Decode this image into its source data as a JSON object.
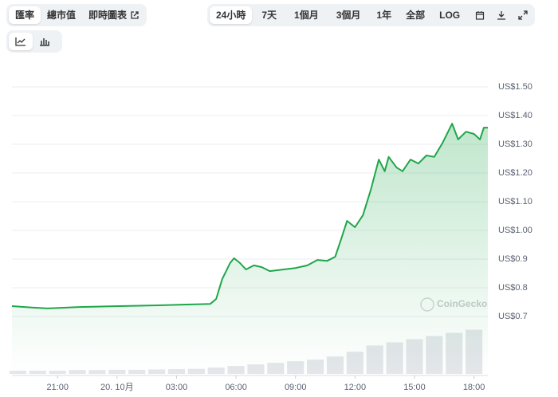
{
  "toolbar": {
    "left": [
      "匯率",
      "總市值",
      "即時圖表"
    ],
    "right": [
      "24小時",
      "7天",
      "1個月",
      "3個月",
      "1年",
      "全部",
      "LOG"
    ]
  },
  "watermark": "CoinGecko",
  "chart_data": {
    "type": "line",
    "color": "#1fa64a",
    "volume_color": "#e3e6ea",
    "grid": true,
    "x": [
      -5.3,
      -4.3,
      -3.5,
      -1.9,
      0.1,
      2.1,
      3.7,
      4.7,
      5.0,
      5.3,
      5.5,
      5.7,
      5.9,
      6.2,
      6.5,
      6.9,
      7.3,
      7.7,
      8.4,
      9.0,
      9.6,
      10.1,
      10.6,
      11.0,
      11.3,
      11.6,
      12.0,
      12.4,
      12.8,
      13.2,
      13.5,
      13.7,
      14.1,
      14.4,
      14.8,
      15.2,
      15.6,
      16.0,
      16.4,
      16.9,
      17.2,
      17.6,
      18.0,
      18.3,
      18.5,
      18.7
    ],
    "values": [
      0.736,
      0.731,
      0.728,
      0.733,
      0.736,
      0.739,
      0.742,
      0.744,
      0.761,
      0.83,
      0.858,
      0.886,
      0.903,
      0.886,
      0.864,
      0.878,
      0.872,
      0.858,
      0.864,
      0.869,
      0.878,
      0.897,
      0.894,
      0.908,
      0.969,
      1.033,
      1.011,
      1.053,
      1.142,
      1.247,
      1.206,
      1.256,
      1.219,
      1.206,
      1.247,
      1.233,
      1.261,
      1.256,
      1.303,
      1.372,
      1.317,
      1.344,
      1.336,
      1.317,
      1.358,
      1.358
    ],
    "volume": {
      "x": [
        -5,
        -4,
        -3,
        -2,
        -1,
        0,
        1,
        2,
        3,
        4,
        5,
        6,
        7,
        8,
        9,
        10,
        11,
        12,
        13,
        14,
        15,
        16,
        17,
        18
      ],
      "values": [
        1,
        1,
        1,
        1.2,
        1.2,
        1.3,
        1.3,
        1.4,
        1.5,
        1.6,
        2,
        2.5,
        3,
        3.5,
        4,
        4.5,
        5.5,
        7,
        9,
        10,
        11,
        12,
        13,
        14
      ],
      "axis": "y2"
    },
    "y2lim": [
      0,
      100
    ],
    "xlim": [
      -5.3,
      18.7
    ],
    "xticks": [
      {
        "value": -3,
        "label": "21:00"
      },
      {
        "value": 0,
        "label": "20. 10月"
      },
      {
        "value": 3,
        "label": "03:00"
      },
      {
        "value": 6,
        "label": "06:00"
      },
      {
        "value": 9,
        "label": "09:00"
      },
      {
        "value": 12,
        "label": "12:00"
      },
      {
        "value": 15,
        "label": "15:00"
      },
      {
        "value": 18,
        "label": "18:00"
      }
    ],
    "ylim": [
      0.5,
      1.6
    ],
    "yticks": [
      {
        "value": 0.7,
        "label": "US$0.7"
      },
      {
        "value": 0.8,
        "label": "US$0.8"
      },
      {
        "value": 0.9,
        "label": "US$0.9"
      },
      {
        "value": 1.0,
        "label": "US$1.00"
      },
      {
        "value": 1.1,
        "label": "US$1.10"
      },
      {
        "value": 1.2,
        "label": "US$1.20"
      },
      {
        "value": 1.3,
        "label": "US$1.30"
      },
      {
        "value": 1.4,
        "label": "US$1.40"
      },
      {
        "value": 1.5,
        "label": "US$1.50"
      }
    ]
  }
}
